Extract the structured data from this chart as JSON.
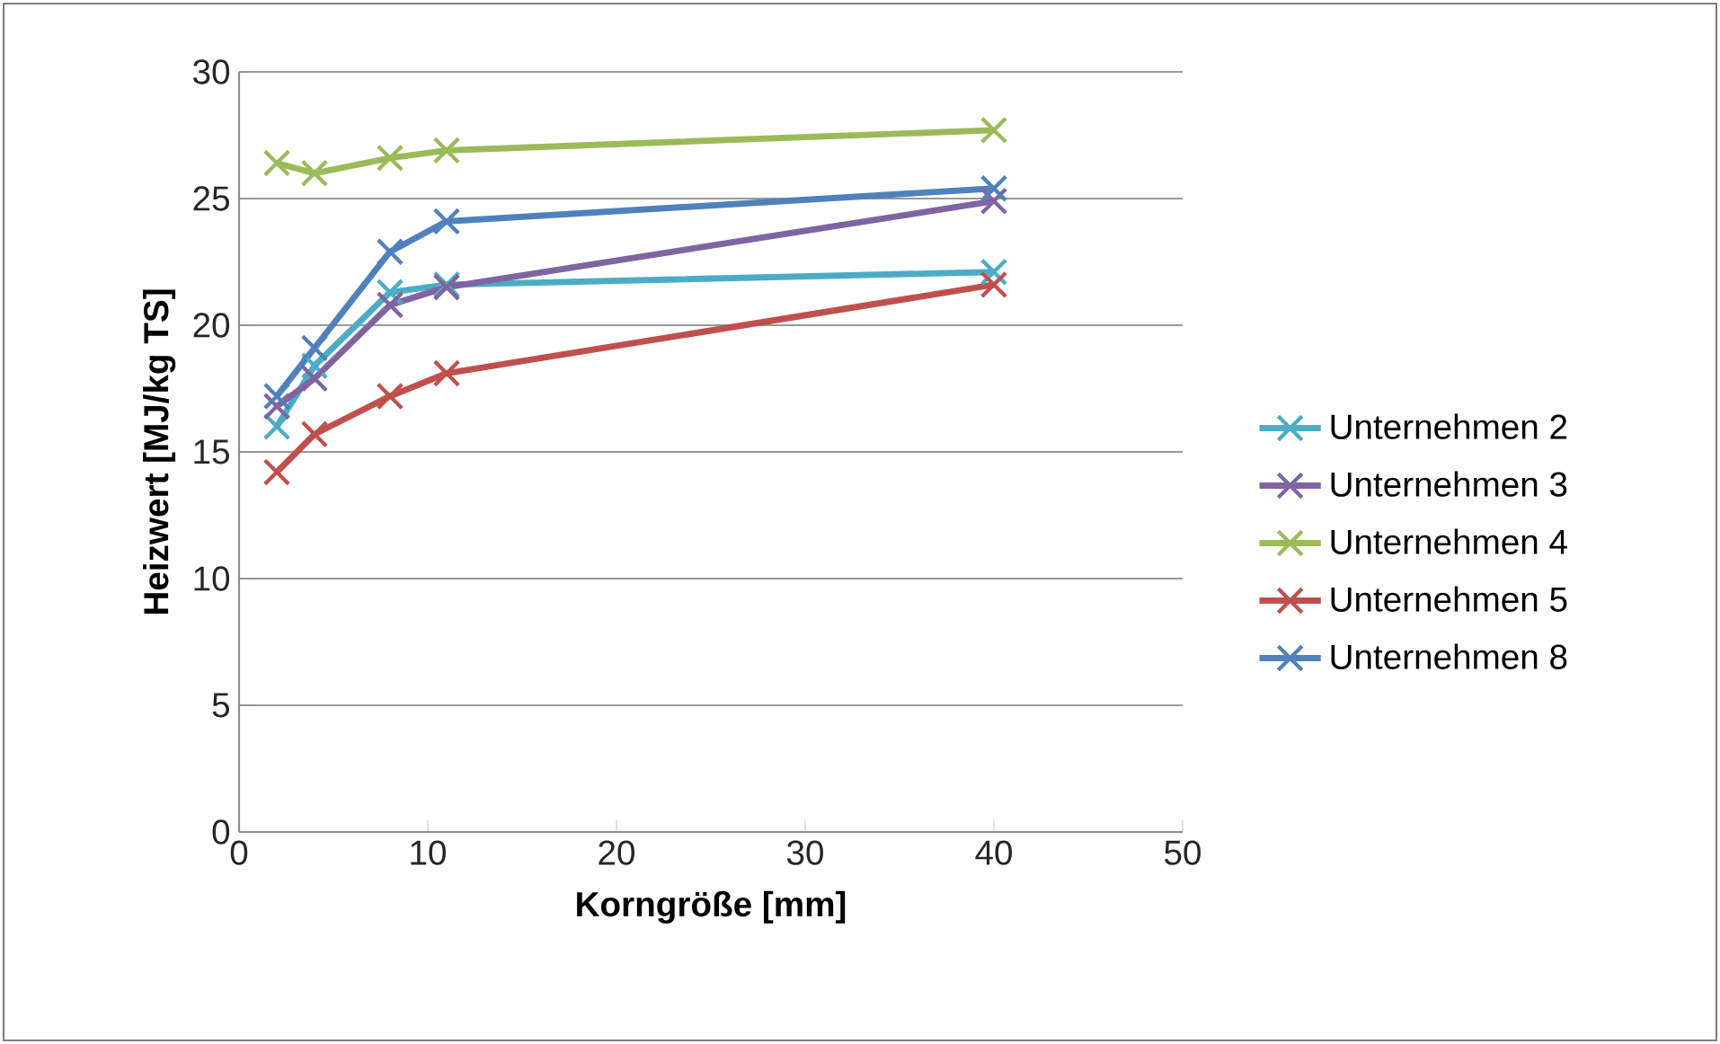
{
  "chart_data": {
    "type": "line",
    "xlabel": "Korngröße [mm]",
    "ylabel": "Heizwert [MJ/kg TS]",
    "xlim": [
      0,
      50
    ],
    "xticks": [
      0,
      10,
      20,
      30,
      40,
      50
    ],
    "ylim": [
      0,
      30
    ],
    "yticks": [
      0,
      5,
      10,
      15,
      20,
      25,
      30
    ],
    "grid": "y",
    "legend": "right",
    "line_style": "solid",
    "x": [
      2,
      4,
      8,
      11,
      40
    ],
    "series": [
      {
        "name": "Unternehmen 2",
        "color": "#4bacc6",
        "marker": "cross",
        "values": [
          16.0,
          18.4,
          21.3,
          21.6,
          22.1
        ]
      },
      {
        "name": "Unternehmen 3",
        "color": "#8064a2",
        "marker": "cross",
        "values": [
          16.8,
          17.9,
          20.8,
          21.5,
          24.9
        ]
      },
      {
        "name": "Unternehmen 4",
        "color": "#9bbb59",
        "marker": "cross",
        "values": [
          26.4,
          26.0,
          26.6,
          26.9,
          27.7
        ]
      },
      {
        "name": "Unternehmen 5",
        "color": "#c0504d",
        "marker": "cross",
        "values": [
          14.2,
          15.7,
          17.2,
          18.1,
          21.6
        ]
      },
      {
        "name": "Unternehmen 8",
        "color": "#4f81bd",
        "marker": "cross",
        "values": [
          17.2,
          19.1,
          22.9,
          24.1,
          25.4
        ]
      }
    ]
  }
}
